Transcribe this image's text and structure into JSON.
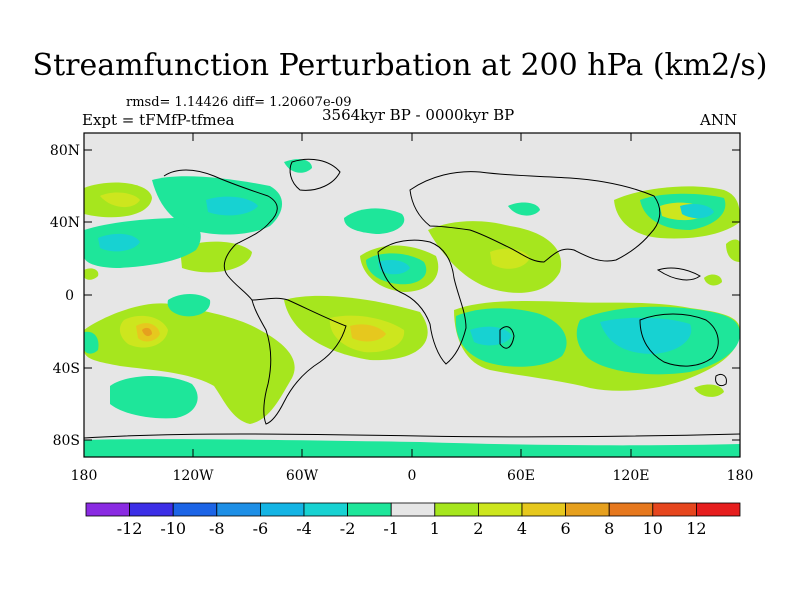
{
  "title": "Streamfunction Perturbation at 200 hPa (km2/s)",
  "stats": "rmsd= 1.14426  diff= 1.20607e-09",
  "experiment": "Expt = tFMfP-tfmea",
  "period": "3564kyr BP - 0000kyr BP",
  "season": "ANN",
  "lat_labels": [
    "80N",
    "40N",
    "0",
    "40S",
    "80S"
  ],
  "lon_labels": [
    "180",
    "120W",
    "60W",
    "0",
    "60E",
    "120E",
    "180"
  ],
  "colorbar": {
    "labels": [
      "-12",
      "-10",
      "-8",
      "-6",
      "-4",
      "-2",
      "-1",
      "1",
      "2",
      "4",
      "6",
      "8",
      "10",
      "12"
    ],
    "colors": [
      "#8a2be2",
      "#3c2ee6",
      "#1c64e6",
      "#1e8fe6",
      "#14b4e4",
      "#17d2d2",
      "#1ee69a",
      "#e6e6e6",
      "#a6e61e",
      "#cde61e",
      "#e6c81e",
      "#e6a01e",
      "#e6781e",
      "#e6461e",
      "#e61e1e"
    ]
  },
  "colors": {
    "background": "#e6e6e6",
    "land_outline": "#000000"
  }
}
